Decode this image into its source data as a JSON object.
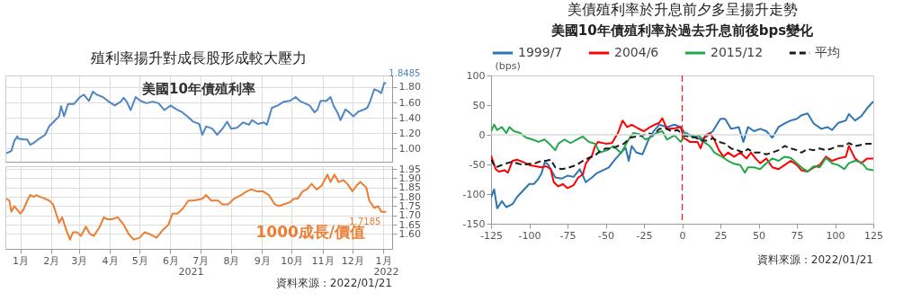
{
  "chart_data": [
    {
      "type": "line",
      "title": "殖利率揚升對成長股形成較大壓力",
      "subtitle": "美國10年債殖利率",
      "color": "#4f86c4",
      "x": [
        "2021-01-01",
        "2021-01-06",
        "2021-01-09",
        "2021-01-12",
        "2021-01-13",
        "2021-01-18",
        "2021-01-22",
        "2021-01-25",
        "2021-01-28",
        "2021-02-03",
        "2021-02-09",
        "2021-02-13",
        "2021-02-17",
        "2021-02-23",
        "2021-02-25",
        "2021-02-28",
        "2021-03-04",
        "2021-03-10",
        "2021-03-16",
        "2021-03-20",
        "2021-03-25",
        "2021-03-29",
        "2021-04-02",
        "2021-04-08",
        "2021-04-14",
        "2021-04-20",
        "2021-04-26",
        "2021-04-29",
        "2021-05-02",
        "2021-05-06",
        "2021-05-11",
        "2021-05-16",
        "2021-05-22",
        "2021-05-28",
        "2021-06-03",
        "2021-06-09",
        "2021-06-15",
        "2021-06-21",
        "2021-06-26",
        "2021-07-02",
        "2021-07-08",
        "2021-07-14",
        "2021-07-17",
        "2021-07-21",
        "2021-07-27",
        "2021-08-01",
        "2021-08-07",
        "2021-08-11",
        "2021-08-15",
        "2021-08-21",
        "2021-08-27",
        "2021-09-02",
        "2021-09-05",
        "2021-09-11",
        "2021-09-17",
        "2021-09-20",
        "2021-09-25",
        "2021-10-01",
        "2021-10-07",
        "2021-10-13",
        "2021-10-19",
        "2021-10-23",
        "2021-10-28",
        "2021-11-02",
        "2021-11-07",
        "2021-11-10",
        "2021-11-13",
        "2021-11-19",
        "2021-11-23",
        "2021-11-26",
        "2021-11-30",
        "2021-12-03",
        "2021-12-08",
        "2021-12-12",
        "2021-12-16",
        "2021-12-21",
        "2021-12-27",
        "2021-12-30",
        "2022-01-02",
        "2022-01-06",
        "2022-01-10",
        "2022-01-13",
        "2022-01-16",
        "2022-01-18"
      ],
      "values": [
        0.94,
        0.97,
        1.1,
        1.16,
        1.13,
        1.12,
        1.12,
        1.05,
        1.07,
        1.13,
        1.18,
        1.29,
        1.34,
        1.42,
        1.55,
        1.42,
        1.58,
        1.58,
        1.67,
        1.7,
        1.62,
        1.74,
        1.7,
        1.67,
        1.61,
        1.56,
        1.61,
        1.66,
        1.61,
        1.5,
        1.67,
        1.62,
        1.59,
        1.61,
        1.59,
        1.5,
        1.56,
        1.51,
        1.48,
        1.42,
        1.35,
        1.32,
        1.18,
        1.29,
        1.26,
        1.18,
        1.27,
        1.35,
        1.26,
        1.27,
        1.34,
        1.31,
        1.37,
        1.32,
        1.34,
        1.31,
        1.53,
        1.56,
        1.61,
        1.62,
        1.67,
        1.62,
        1.59,
        1.56,
        1.47,
        1.51,
        1.62,
        1.62,
        1.67,
        1.56,
        1.47,
        1.37,
        1.51,
        1.47,
        1.42,
        1.48,
        1.51,
        1.53,
        1.62,
        1.77,
        1.75,
        1.72,
        1.85,
        1.85
      ],
      "xlim": [
        "2020-12-31",
        "2022-01-24"
      ],
      "xticks": [
        {
          "value": "2021-01-15",
          "label": null
        },
        {
          "value": "2021-02-15",
          "label": null
        },
        {
          "value": "2021-03-15",
          "label": null
        },
        {
          "value": "2021-04-15",
          "label": null
        },
        {
          "value": "2021-05-15",
          "label": null
        },
        {
          "value": "2021-06-15",
          "label": null
        },
        {
          "value": "2021-07-15",
          "label": null
        },
        {
          "value": "2021-08-15",
          "label": null
        },
        {
          "value": "2021-09-15",
          "label": null
        },
        {
          "value": "2021-10-15",
          "label": null
        },
        {
          "value": "2021-11-15",
          "label": null
        },
        {
          "value": "2021-12-15",
          "label": null
        },
        {
          "value": "2022-01-15",
          "label": null
        }
      ],
      "ylim": [
        0.83,
        1.95
      ],
      "yticks": [
        {
          "value": 1.0,
          "label": "1.00"
        },
        {
          "value": 1.2,
          "label": "1.20"
        },
        {
          "value": 1.4,
          "label": "1.40"
        },
        {
          "value": 1.6,
          "label": "1.60"
        },
        {
          "value": 1.8,
          "label": "1.80"
        }
      ],
      "tick_labels": "y",
      "grid": true,
      "annotations": [
        {
          "text": "1.8485",
          "x": "2022-01-18",
          "y": 1.8485
        }
      ]
    },
    {
      "type": "line",
      "subtitle": "1000成長/價值",
      "color": "#ed7d31",
      "x": [
        "2021-01-01",
        "2021-01-04",
        "2021-01-06",
        "2021-01-09",
        "2021-01-12",
        "2021-01-15",
        "2021-01-18",
        "2021-01-22",
        "2021-01-25",
        "2021-01-29",
        "2021-01-31",
        "2021-02-04",
        "2021-02-09",
        "2021-02-13",
        "2021-02-17",
        "2021-02-20",
        "2021-02-23",
        "2021-02-26",
        "2021-03-03",
        "2021-03-06",
        "2021-03-09",
        "2021-03-13",
        "2021-03-17",
        "2021-03-22",
        "2021-03-26",
        "2021-03-30",
        "2021-04-05",
        "2021-04-09",
        "2021-04-12",
        "2021-04-17",
        "2021-04-23",
        "2021-04-29",
        "2021-05-04",
        "2021-05-09",
        "2021-05-15",
        "2021-05-20",
        "2021-05-25",
        "2021-06-01",
        "2021-06-07",
        "2021-06-13",
        "2021-06-17",
        "2021-06-22",
        "2021-06-28",
        "2021-07-03",
        "2021-07-08",
        "2021-07-17",
        "2021-07-21",
        "2021-07-26",
        "2021-08-02",
        "2021-08-06",
        "2021-08-12",
        "2021-08-18",
        "2021-08-25",
        "2021-08-31",
        "2021-09-04",
        "2021-09-10",
        "2021-09-16",
        "2021-09-22",
        "2021-09-28",
        "2021-10-02",
        "2021-10-07",
        "2021-10-13",
        "2021-10-17",
        "2021-10-21",
        "2021-10-26",
        "2021-10-30",
        "2021-11-04",
        "2021-11-09",
        "2021-11-14",
        "2021-11-20",
        "2021-11-23",
        "2021-11-27",
        "2021-12-01",
        "2021-12-06",
        "2021-12-10",
        "2021-12-15",
        "2021-12-19",
        "2021-12-23",
        "2021-12-29",
        "2022-01-01",
        "2022-01-06",
        "2022-01-10",
        "2022-01-13",
        "2022-01-18"
      ],
      "values": [
        1.79,
        1.78,
        1.72,
        1.75,
        1.73,
        1.71,
        1.73,
        1.78,
        1.81,
        1.8,
        1.81,
        1.8,
        1.79,
        1.78,
        1.76,
        1.71,
        1.66,
        1.69,
        1.61,
        1.57,
        1.61,
        1.61,
        1.59,
        1.64,
        1.6,
        1.59,
        1.64,
        1.69,
        1.68,
        1.68,
        1.69,
        1.65,
        1.6,
        1.57,
        1.58,
        1.61,
        1.6,
        1.58,
        1.62,
        1.65,
        1.71,
        1.71,
        1.74,
        1.78,
        1.78,
        1.79,
        1.81,
        1.78,
        1.78,
        1.76,
        1.76,
        1.79,
        1.81,
        1.83,
        1.84,
        1.83,
        1.83,
        1.81,
        1.76,
        1.75,
        1.76,
        1.77,
        1.79,
        1.79,
        1.83,
        1.84,
        1.87,
        1.84,
        1.86,
        1.92,
        1.88,
        1.92,
        1.88,
        1.89,
        1.87,
        1.83,
        1.86,
        1.88,
        1.85,
        1.78,
        1.74,
        1.75,
        1.72,
        1.72
      ],
      "xlim": [
        "2020-12-31",
        "2022-01-24"
      ],
      "xticks": [
        {
          "value": "2021-01-15",
          "label": "1月"
        },
        {
          "value": "2021-02-15",
          "label": "2月"
        },
        {
          "value": "2021-03-15",
          "label": "3月"
        },
        {
          "value": "2021-04-15",
          "label": "4月"
        },
        {
          "value": "2021-05-15",
          "label": "5月"
        },
        {
          "value": "2021-06-15",
          "label": "6月"
        },
        {
          "value": "2021-07-15",
          "label": "7月"
        },
        {
          "value": "2021-08-15",
          "label": "8月"
        },
        {
          "value": "2021-09-15",
          "label": "9月"
        },
        {
          "value": "2021-10-15",
          "label": "10月"
        },
        {
          "value": "2021-11-15",
          "label": "11月"
        },
        {
          "value": "2021-12-15",
          "label": "12月"
        },
        {
          "value": "2022-01-15",
          "label": "1月"
        }
      ],
      "ylim": [
        1.52,
        1.965
      ],
      "yticks": [
        {
          "value": 1.6,
          "label": "1.60"
        },
        {
          "value": 1.65,
          "label": "1.65"
        },
        {
          "value": 1.7,
          "label": "1.70"
        },
        {
          "value": 1.75,
          "label": "1.75"
        },
        {
          "value": 1.8,
          "label": "1.80"
        },
        {
          "value": 1.85,
          "label": "1.85"
        },
        {
          "value": 1.9,
          "label": "1.90"
        },
        {
          "value": 1.95,
          "label": "1.95"
        }
      ],
      "grid": true,
      "annotations": [
        {
          "text": "1.7185",
          "x": "2022-01-18",
          "y": 1.7185
        },
        "2021",
        "2022",
        "資料來源：2022/01/21"
      ]
    },
    {
      "type": "line",
      "title": "美債殖利率於升息前夕多呈揚升走勢",
      "subtitle": "美國10年債殖利率於過去升息前後bps變化",
      "ylabel": "(bps)",
      "xlim": [
        -125,
        125
      ],
      "xticks": [
        -125,
        -100,
        -75,
        -50,
        -25,
        0,
        25,
        50,
        75,
        100,
        125
      ],
      "ylim": [
        -150,
        100
      ],
      "yticks": [
        -150,
        -100,
        -50,
        0,
        50,
        100
      ],
      "grid": false,
      "legend": "top",
      "line_style": "solid",
      "ref_lines": [
        {
          "axis": "y",
          "value": 0,
          "color": "#d9d9d9"
        },
        {
          "axis": "x",
          "value": 0,
          "color": "#e0262b",
          "line_style": "dashed"
        }
      ],
      "annotations": [
        "資料來源：2022/01/21"
      ],
      "series": [
        {
          "name": "1999/7",
          "color": "#2e75b6",
          "x": [
            -125,
            -123,
            -121,
            -118,
            -115,
            -111,
            -108,
            -104,
            -100,
            -97,
            -94,
            -92,
            -90,
            -88,
            -86,
            -83,
            -79,
            -75,
            -71,
            -67,
            -63,
            -59,
            -56,
            -52,
            -48,
            -44,
            -40,
            -37,
            -35,
            -33,
            -30,
            -26,
            -22,
            -19,
            -15,
            -10,
            -5,
            -1,
            2,
            7,
            12,
            16,
            20,
            25,
            28,
            32,
            37,
            40,
            43,
            47,
            51,
            55,
            59,
            63,
            67,
            71,
            75,
            78,
            82,
            86,
            91,
            95,
            98,
            102,
            107,
            109,
            113,
            117,
            121,
            125
          ],
          "values": [
            -106,
            -92,
            -124,
            -112,
            -122,
            -117,
            -105,
            -94,
            -83,
            -83,
            -74,
            -65,
            -47,
            -49,
            -58,
            -72,
            -74,
            -69,
            -71,
            -58,
            -80,
            -72,
            -65,
            -60,
            -55,
            -42,
            -30,
            -22,
            -44,
            -19,
            -30,
            -33,
            -8,
            5,
            17,
            13,
            17,
            13,
            2,
            -1,
            -8,
            -3,
            6,
            27,
            27,
            10,
            13,
            -12,
            13,
            6,
            10,
            6,
            -5,
            13,
            19,
            24,
            27,
            33,
            36,
            19,
            10,
            13,
            8,
            20,
            24,
            35,
            24,
            31,
            45,
            56
          ]
        },
        {
          "name": "2004/6",
          "color": "#ff0000",
          "x": [
            -125,
            -122,
            -120,
            -116,
            -114,
            -111,
            -108,
            -104,
            -100,
            -96,
            -92,
            -89,
            -86,
            -84,
            -81,
            -78,
            -75,
            -71,
            -68,
            -65,
            -63,
            -59,
            -57,
            -55,
            -50,
            -46,
            -42,
            -39,
            -36,
            -33,
            -29,
            -25,
            -21,
            -18,
            -15,
            -13,
            -10,
            -5,
            -1,
            1,
            5,
            10,
            12,
            15,
            18,
            21,
            24,
            27,
            30,
            34,
            38,
            42,
            45,
            48,
            51,
            55,
            59,
            63,
            67,
            71,
            75,
            78,
            82,
            86,
            90,
            94,
            98,
            102,
            107,
            109,
            113,
            117,
            121,
            125
          ],
          "values": [
            -35,
            -58,
            -62,
            -60,
            -64,
            -44,
            -42,
            -46,
            -51,
            -53,
            -55,
            -53,
            -58,
            -80,
            -87,
            -83,
            -90,
            -85,
            -72,
            -67,
            -48,
            -35,
            -19,
            -12,
            -15,
            -14,
            3,
            24,
            13,
            17,
            11,
            6,
            13,
            17,
            20,
            28,
            10,
            11,
            13,
            -5,
            -12,
            -12,
            -23,
            -1,
            3,
            -8,
            -26,
            -37,
            -30,
            -37,
            -30,
            -40,
            -30,
            -40,
            -48,
            -40,
            -55,
            -58,
            -51,
            -44,
            -51,
            -60,
            -62,
            -55,
            -51,
            -37,
            -44,
            -40,
            -37,
            -19,
            -40,
            -48,
            -40,
            -40
          ]
        },
        {
          "name": "2015/12",
          "color": "#22a84b",
          "x": [
            -125,
            -123,
            -121,
            -118,
            -115,
            -113,
            -110,
            -106,
            -102,
            -98,
            -94,
            -90,
            -87,
            -83,
            -81,
            -77,
            -73,
            -69,
            -65,
            -61,
            -57,
            -54,
            -49,
            -45,
            -40,
            -36,
            -32,
            -28,
            -24,
            -21,
            -17,
            -13,
            -10,
            -5,
            -1,
            3,
            7,
            11,
            14,
            18,
            21,
            26,
            30,
            34,
            38,
            41,
            43,
            47,
            51,
            55,
            59,
            63,
            67,
            71,
            75,
            78,
            82,
            86,
            90,
            94,
            98,
            102,
            106,
            109,
            113,
            117,
            121,
            125
          ],
          "values": [
            6,
            17,
            8,
            13,
            3,
            13,
            6,
            3,
            -5,
            -8,
            -12,
            -8,
            -15,
            -26,
            -15,
            -8,
            -14,
            -8,
            -3,
            -12,
            -15,
            -30,
            -26,
            -19,
            -31,
            -12,
            3,
            1,
            -8,
            -5,
            3,
            6,
            -8,
            -1,
            -12,
            3,
            -5,
            -1,
            -12,
            -19,
            -30,
            -37,
            -44,
            -49,
            -51,
            -64,
            -55,
            -55,
            -58,
            -48,
            -40,
            -44,
            -37,
            -39,
            -48,
            -55,
            -62,
            -53,
            -55,
            -39,
            -48,
            -51,
            -58,
            -48,
            -44,
            -46,
            -58,
            -60
          ]
        },
        {
          "name": "平均",
          "color": "#1a1a1a",
          "line_style": "dashed",
          "x": [
            -125,
            -122,
            -120,
            -116,
            -112,
            -108,
            -104,
            -100,
            -96,
            -92,
            -89,
            -86,
            -83,
            -79,
            -75,
            -69,
            -65,
            -61,
            -57,
            -54,
            -50,
            -46,
            -42,
            -38,
            -34,
            -30,
            -26,
            -22,
            -19,
            -15,
            -11,
            -7,
            -3,
            1,
            5,
            9,
            12,
            16,
            20,
            24,
            28,
            32,
            36,
            40,
            43,
            47,
            51,
            55,
            59,
            63,
            67,
            71,
            75,
            78,
            82,
            86,
            90,
            94,
            98,
            102,
            106,
            109,
            113,
            117,
            121,
            125
          ],
          "values": [
            -42,
            -55,
            -53,
            -49,
            -46,
            -48,
            -51,
            -49,
            -48,
            -44,
            -44,
            -42,
            -55,
            -58,
            -56,
            -51,
            -44,
            -39,
            -35,
            -28,
            -23,
            -23,
            -19,
            -15,
            -5,
            -3,
            -1,
            3,
            -1,
            10,
            11,
            6,
            8,
            -1,
            -3,
            -5,
            -10,
            -10,
            -6,
            -12,
            -15,
            -23,
            -26,
            -30,
            -24,
            -30,
            -30,
            -33,
            -30,
            -26,
            -19,
            -23,
            -26,
            -30,
            -24,
            -26,
            -23,
            -26,
            -23,
            -19,
            -19,
            -14,
            -19,
            -17,
            -15,
            -15
          ]
        }
      ]
    }
  ]
}
